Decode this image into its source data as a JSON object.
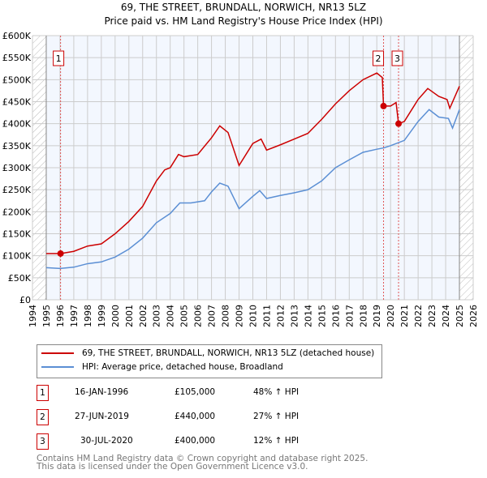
{
  "chart_data": {
    "type": "line",
    "title": "69, THE STREET, BRUNDALL, NORWICH, NR13 5LZ",
    "subtitle": "Price paid vs. HM Land Registry's House Price Index (HPI)",
    "xlim": [
      1994,
      2026
    ],
    "ylim": [
      0,
      600000
    ],
    "x_ticks": [
      "1994",
      "1995",
      "1996",
      "1997",
      "1998",
      "1999",
      "2000",
      "2001",
      "2002",
      "2003",
      "2004",
      "2005",
      "2006",
      "2007",
      "2008",
      "2009",
      "2010",
      "2011",
      "2012",
      "2013",
      "2014",
      "2015",
      "2016",
      "2017",
      "2018",
      "2019",
      "2020",
      "2021",
      "2022",
      "2023",
      "2024",
      "2025",
      "2026"
    ],
    "y_ticks": [
      {
        "v": 0,
        "l": "£0"
      },
      {
        "v": 50000,
        "l": "£50K"
      },
      {
        "v": 100000,
        "l": "£100K"
      },
      {
        "v": 150000,
        "l": "£150K"
      },
      {
        "v": 200000,
        "l": "£200K"
      },
      {
        "v": 250000,
        "l": "£250K"
      },
      {
        "v": 300000,
        "l": "£300K"
      },
      {
        "v": 350000,
        "l": "£350K"
      },
      {
        "v": 400000,
        "l": "£400K"
      },
      {
        "v": 450000,
        "l": "£450K"
      },
      {
        "v": 500000,
        "l": "£500K"
      },
      {
        "v": 550000,
        "l": "£550K"
      },
      {
        "v": 600000,
        "l": "£600K"
      }
    ],
    "data_range": [
      1995,
      2025
    ],
    "series": [
      {
        "name": "69, THE STREET, BRUNDALL, NORWICH, NR13 5LZ (detached house)",
        "color": "#cc0000",
        "x": [
          1995,
          1996.04,
          1997,
          1998,
          1999,
          2000,
          2001,
          2002,
          2003,
          2003.6,
          2004,
          2004.6,
          2005,
          2006,
          2007,
          2007.6,
          2008.2,
          2009,
          2010,
          2010.6,
          2011,
          2012,
          2013,
          2014,
          2015,
          2016,
          2017,
          2018,
          2019,
          2019.4,
          2019.49,
          2020,
          2020.4,
          2020.58,
          2021,
          2022,
          2022.7,
          2023.5,
          2024.1,
          2024.3,
          2025
        ],
        "y": [
          105000,
          105000,
          110000,
          122000,
          127000,
          150000,
          178000,
          212000,
          270000,
          295000,
          300000,
          330000,
          325000,
          330000,
          368000,
          395000,
          380000,
          305000,
          355000,
          365000,
          340000,
          352000,
          365000,
          378000,
          410000,
          445000,
          475000,
          500000,
          515000,
          505000,
          440000,
          440000,
          448000,
          400000,
          405000,
          455000,
          480000,
          462000,
          455000,
          435000,
          485000
        ]
      },
      {
        "name": "HPI: Average price, detached house, Broadland",
        "color": "#5b8fd4",
        "x": [
          1995,
          1996,
          1997,
          1998,
          1999,
          2000,
          2001,
          2002,
          2003,
          2004,
          2004.7,
          2005.5,
          2006.5,
          2007,
          2007.6,
          2008.2,
          2009,
          2010,
          2010.5,
          2011,
          2012,
          2013,
          2014,
          2015,
          2016,
          2017,
          2018,
          2019,
          2019.5,
          2020,
          2021,
          2022,
          2022.8,
          2023.5,
          2024.2,
          2024.5,
          2025
        ],
        "y": [
          73000,
          71000,
          74000,
          82000,
          86000,
          97000,
          115000,
          140000,
          175000,
          196000,
          220000,
          220000,
          225000,
          245000,
          265000,
          258000,
          207000,
          235000,
          248000,
          230000,
          237000,
          243000,
          250000,
          270000,
          300000,
          318000,
          335000,
          342000,
          345000,
          350000,
          362000,
          405000,
          432000,
          415000,
          412000,
          390000,
          432000
        ]
      }
    ],
    "sales": [
      {
        "n": "1",
        "x": 1996.04,
        "date": "16-JAN-1996",
        "price": 105000,
        "price_label": "£105,000",
        "hpi": "48% ↑ HPI"
      },
      {
        "n": "2",
        "x": 2019.49,
        "date": "27-JUN-2019",
        "price": 440000,
        "price_label": "£440,000",
        "hpi": "27% ↑ HPI"
      },
      {
        "n": "3",
        "x": 2020.58,
        "date": "30-JUL-2020",
        "price": 400000,
        "price_label": "£400,000",
        "hpi": "12% ↑ HPI"
      }
    ]
  },
  "footer": [
    "Contains HM Land Registry data © Crown copyright and database right 2025.",
    "This data is licensed under the Open Government Licence v3.0."
  ]
}
